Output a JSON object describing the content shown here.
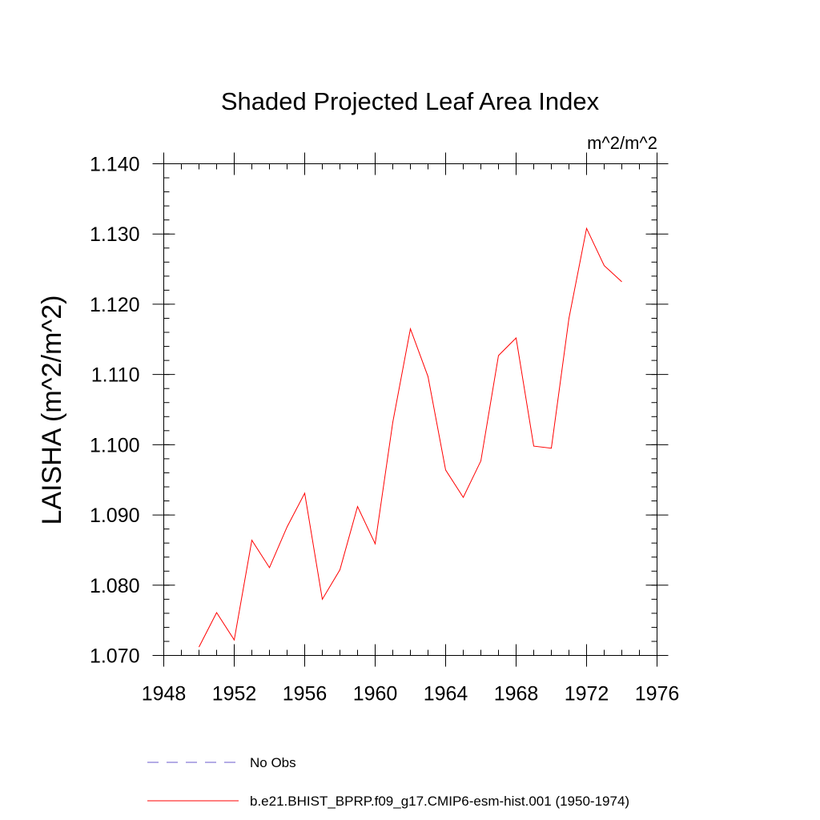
{
  "chart_data": {
    "type": "line",
    "title": "Shaded Projected Leaf Area Index",
    "units": "m^2/m^2",
    "xlabel": "",
    "ylabel": "LAISHA  (m^2/m^2)",
    "xlim": [
      1948,
      1976
    ],
    "ylim": [
      1.07,
      1.14
    ],
    "x_ticks": [
      "1948",
      "1952",
      "1956",
      "1960",
      "1964",
      "1968",
      "1972",
      "1976"
    ],
    "y_ticks": [
      "1.070",
      "1.080",
      "1.090",
      "1.100",
      "1.110",
      "1.120",
      "1.130",
      "1.140"
    ],
    "grid": false,
    "legend_placement": "bottom",
    "series": [
      {
        "name": "No Obs",
        "color": "#6a5acd",
        "dashed": true,
        "x": [],
        "values": []
      },
      {
        "name": "b.e21.BHIST_BPRP.f09_g17.CMIP6-esm-hist.001 (1950-1974)",
        "color": "#ff0000",
        "dashed": false,
        "x": [
          1950,
          1951,
          1952,
          1953,
          1954,
          1955,
          1956,
          1957,
          1958,
          1959,
          1960,
          1961,
          1962,
          1963,
          1964,
          1965,
          1966,
          1967,
          1968,
          1969,
          1970,
          1971,
          1972,
          1973,
          1974
        ],
        "values": [
          1.0712,
          1.0761,
          1.0722,
          1.0864,
          1.0825,
          1.0883,
          1.0931,
          1.078,
          1.0822,
          1.0912,
          1.0859,
          1.1032,
          1.1165,
          1.1097,
          1.0964,
          1.0925,
          1.0977,
          1.1127,
          1.1152,
          1.0998,
          1.0995,
          1.118,
          1.1308,
          1.1255,
          1.1232
        ]
      }
    ]
  }
}
